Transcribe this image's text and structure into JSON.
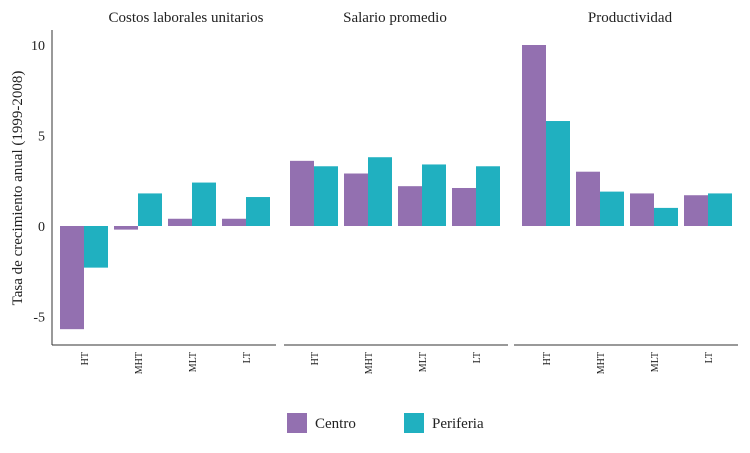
{
  "chart_data": {
    "type": "bar",
    "ylabel": "Tasa de crecimiento anual (1999-2008)",
    "ylim": [
      -6.5,
      11
    ],
    "yticks": [
      -5,
      0,
      5,
      10
    ],
    "grid": false,
    "legend_position": "bottom",
    "categories": [
      "HT",
      "MHT",
      "MLT",
      "LT"
    ],
    "series_names": [
      "Centro",
      "Periferia"
    ],
    "colors": {
      "Centro": "#9370b0",
      "Periferia": "#20b0c0"
    },
    "panels": [
      {
        "title": "Costos laborales unitarios",
        "series": [
          {
            "name": "Centro",
            "values": [
              -5.7,
              -0.2,
              0.4,
              0.4
            ]
          },
          {
            "name": "Periferia",
            "values": [
              -2.3,
              1.8,
              2.4,
              1.6
            ]
          }
        ]
      },
      {
        "title": "Salario promedio",
        "series": [
          {
            "name": "Centro",
            "values": [
              3.6,
              2.9,
              2.2,
              2.1
            ]
          },
          {
            "name": "Periferia",
            "values": [
              3.3,
              3.8,
              3.4,
              3.3
            ]
          }
        ]
      },
      {
        "title": "Productividad",
        "series": [
          {
            "name": "Centro",
            "values": [
              10.0,
              3.0,
              1.8,
              1.7
            ]
          },
          {
            "name": "Periferia",
            "values": [
              5.8,
              1.9,
              1.0,
              1.8
            ]
          }
        ]
      }
    ]
  }
}
